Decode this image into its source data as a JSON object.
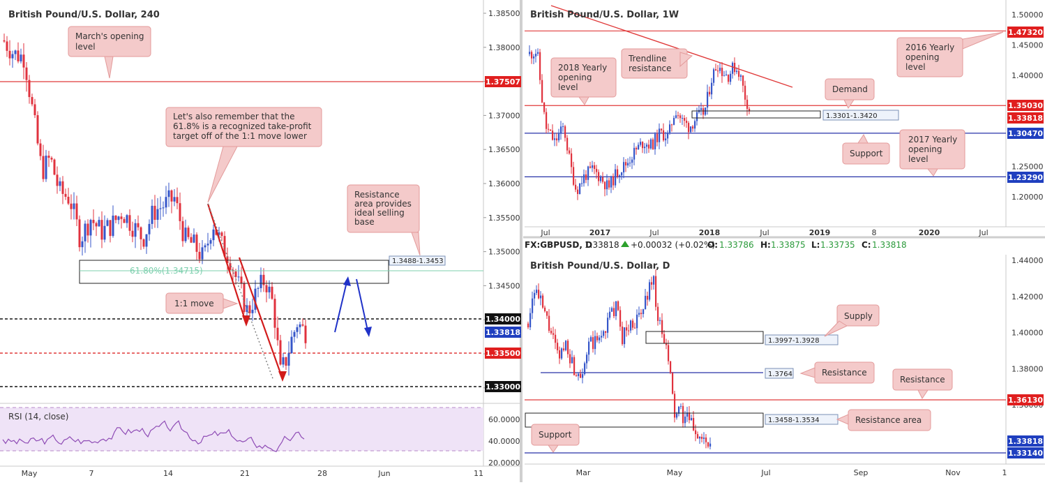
{
  "colors": {
    "up": "#3656c9",
    "down": "#e0323e",
    "red_line": "#e03a3a",
    "blue_line": "#2732a8",
    "black_line": "#111111",
    "callout_bg": "#f4caca",
    "callout_border": "#e39a9a",
    "axis_text": "#333333",
    "rsi_line": "#8e4bb5",
    "rsi_bg": "#efe3f7",
    "fib": "#7ccfad"
  },
  "panels": {
    "h4": {
      "title": "British Pound/U.S. Dollar, 240",
      "y_ticks": [
        "1.38500",
        "1.38000",
        "1.37500",
        "1.37000",
        "1.36500",
        "1.36000",
        "1.35500",
        "1.35000",
        "1.34500",
        "1.34000",
        "1.33500",
        "1.33000"
      ],
      "x_ticks": [
        "May",
        "7",
        "14",
        "21",
        "28",
        "Jun",
        "11"
      ],
      "price_labels": [
        {
          "text": "1.37507",
          "style": "red"
        },
        {
          "text": "1.34000",
          "style": "black"
        },
        {
          "text": "1.33818",
          "style": "blue"
        },
        {
          "text": "1.33500",
          "style": "red"
        },
        {
          "text": "1.33000",
          "style": "black"
        }
      ],
      "zone_label": "1.3488-1.3453",
      "fib_label": "61.80%(1.34715)",
      "callouts": {
        "march": "March's opening level",
        "fib_note": "Let's also remember that the 61.8% is a recognized take-profit target off of the 1:1 move lower",
        "resistance_area": "Resistance area provides ideal selling base",
        "one_to_one": "1:1 move"
      },
      "rsi_title": "RSI (14, close)",
      "rsi_ticks": [
        "60.0000",
        "40.0000",
        "20.0000"
      ]
    },
    "weekly": {
      "title": "British Pound/U.S. Dollar, 1W",
      "y_ticks": [
        "1.50000",
        "1.45000",
        "1.40000",
        "1.35000",
        "1.30000",
        "1.25000",
        "1.20000"
      ],
      "x_ticks": [
        "Jul",
        "2017",
        "Jul",
        "2018",
        "Jul",
        "2019",
        "8",
        "2020",
        "Jul"
      ],
      "price_labels": [
        {
          "text": "1.47320",
          "style": "red"
        },
        {
          "text": "1.35030",
          "style": "red"
        },
        {
          "text": "1.33818",
          "style": "red"
        },
        {
          "text": "1.30470",
          "style": "blue"
        },
        {
          "text": "1.23290",
          "style": "blue"
        }
      ],
      "zone_label": "1.3301-1.3420",
      "callouts": {
        "yearly_2018": "2018 Yearly opening level",
        "trendline": "Trendline resistance",
        "yearly_2016": "2016 Yearly opening level",
        "demand": "Demand",
        "support": "Support",
        "yearly_2017": "2017 Yearly opening level"
      }
    },
    "daily": {
      "header": {
        "symbol": "FX:GBPUSD, D",
        "last": "1.33818",
        "change": "+0.00032 (+0.02%)",
        "o_label": "O:",
        "o": "1.33786",
        "h_label": "H:",
        "h": "1.33875",
        "l_label": "L:",
        "l": "1.33735",
        "c_label": "C:",
        "c": "1.33818"
      },
      "title": "British Pound/U.S. Dollar, D",
      "y_ticks": [
        "1.44000",
        "1.42000",
        "1.40000",
        "1.38000",
        "1.36000",
        "1.34000"
      ],
      "x_ticks": [
        "Mar",
        "May",
        "Jul",
        "Sep",
        "Nov",
        "1"
      ],
      "price_labels": [
        {
          "text": "1.36130",
          "style": "red"
        },
        {
          "text": "1.33818",
          "style": "blue"
        },
        {
          "text": "1.33140",
          "style": "blue"
        }
      ],
      "supply_label": "1.3997-1.3928",
      "resistance_label": "1.3764",
      "resistance_area_label": "1.3458-1.3534",
      "callouts": {
        "supply": "Supply",
        "resistance": "Resistance",
        "resistance2": "Resistance",
        "resistance_area": "Resistance area",
        "support": "Support"
      }
    }
  },
  "chart_data": [
    {
      "type": "candlestick",
      "title": "British Pound/U.S. Dollar, 240",
      "ylim": [
        1.3275,
        1.3875
      ],
      "x_ticks": [
        "May",
        "7",
        "14",
        "21",
        "28",
        "Jun",
        "11"
      ],
      "horizontal_levels": [
        {
          "value": 1.37507,
          "color": "red",
          "label": "March's opening level"
        },
        {
          "value": 1.34,
          "color": "black",
          "dashed": true
        },
        {
          "value": 1.335,
          "color": "red",
          "dashed": true
        },
        {
          "value": 1.33,
          "color": "black",
          "dashed": true
        }
      ],
      "zone": {
        "low": 1.3453,
        "high": 1.3488,
        "label": "Resistance area provides ideal selling base"
      },
      "fib_level": {
        "label": "61.80%",
        "value": 1.34715
      },
      "last_price": 1.33818,
      "rsi": {
        "label": "RSI (14, close)",
        "ylim": [
          20,
          70
        ],
        "bands": [
          30,
          70
        ]
      }
    },
    {
      "type": "candlestick",
      "title": "British Pound/U.S. Dollar, 1W",
      "ylim": [
        1.17,
        1.51
      ],
      "x_ticks": [
        "Jul",
        "2017",
        "Jul",
        "2018",
        "Jul",
        "2019",
        "8",
        "2020",
        "Jul"
      ],
      "horizontal_levels": [
        {
          "value": 1.4732,
          "color": "red",
          "label": "2016 Yearly opening level"
        },
        {
          "value": 1.3503,
          "color": "red",
          "label": "2018 Yearly opening level"
        },
        {
          "value": 1.3047,
          "color": "blue",
          "label": "Support"
        },
        {
          "value": 1.2329,
          "color": "blue",
          "label": "2017 Yearly opening level"
        }
      ],
      "zone": {
        "low": 1.3301,
        "high": 1.342,
        "label": "Demand"
      },
      "trendline": {
        "label": "Trendline resistance",
        "from": 1.58,
        "to": 1.385
      },
      "last_price": 1.33818
    },
    {
      "type": "candlestick",
      "title": "British Pound/U.S. Dollar, D",
      "ylim": [
        1.325,
        1.445
      ],
      "x_ticks": [
        "Mar",
        "May",
        "Jul",
        "Sep",
        "Nov",
        "1"
      ],
      "zones": [
        {
          "low": 1.3928,
          "high": 1.3997,
          "label": "Supply"
        },
        {
          "low": 1.3458,
          "high": 1.3534,
          "label": "Resistance area"
        }
      ],
      "horizontal_levels": [
        {
          "value": 1.3764,
          "color": "blue",
          "label": "Resistance"
        },
        {
          "value": 1.3613,
          "color": "red",
          "label": "Resistance"
        },
        {
          "value": 1.3314,
          "color": "blue",
          "label": "Support"
        }
      ],
      "ohlc": {
        "open": 1.33786,
        "high": 1.33875,
        "low": 1.33735,
        "close": 1.33818,
        "change": 0.00032,
        "change_pct": 0.02
      }
    }
  ]
}
